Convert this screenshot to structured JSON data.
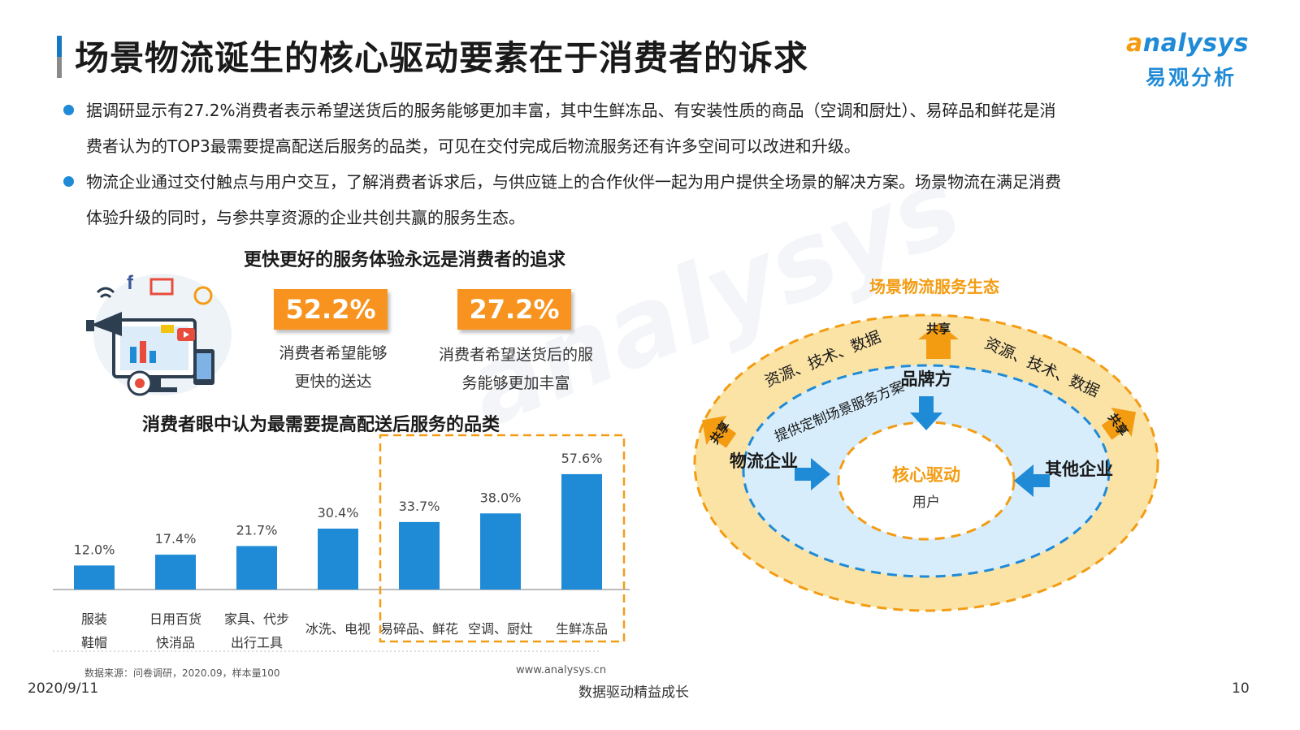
{
  "title": "场景物流诞生的核心驱动要素在于消费者的诉求",
  "logo": {
    "en": "nalysys",
    "en_initial": "a",
    "cn": "易观分析"
  },
  "bullets": [
    {
      "line1": "据调研显示有27.2%消费者表示希望送货后的服务能够更加丰富，其中生鲜冻品、有安装性质的商品（空调和厨灶）、易碎品和鲜花是消",
      "line2": "费者认为的TOP3最需要提高配送后服务的品类，可见在交付完成后物流服务还有许多空间可以改进和升级。"
    },
    {
      "line1": "物流企业通过交付触点与用户交互，了解消费者诉求后，与供应链上的合作伙伴一起为用户提供全场景的解决方案。场景物流在满足消费",
      "line2": "体验升级的同时，与参共享资源的企业共创共赢的服务生态。"
    }
  ],
  "stats": {
    "heading": "更快更好的服务体验永远是消费者的追求",
    "items": [
      {
        "value": "52.2%",
        "caption1": "消费者希望能够",
        "caption2": "更快的送达"
      },
      {
        "value": "27.2%",
        "caption1": "消费者希望送货后的服",
        "caption2": "务能够更加丰富"
      }
    ]
  },
  "chart_data": {
    "type": "bar",
    "title": "消费者眼中认为最需要提高配送后服务的品类",
    "categories": [
      [
        "服装",
        "鞋帽"
      ],
      [
        "日用百货",
        "快消品"
      ],
      [
        "家具、代步",
        "出行工具"
      ],
      [
        "冰洗、电视"
      ],
      [
        "易碎品、鲜花"
      ],
      [
        "空调、厨灶"
      ],
      [
        "生鲜冻品"
      ]
    ],
    "values": [
      12.0,
      17.4,
      21.7,
      30.4,
      33.7,
      38.0,
      57.6
    ],
    "value_labels": [
      "12.0%",
      "17.4%",
      "21.7%",
      "30.4%",
      "33.7%",
      "38.0%",
      "57.6%"
    ],
    "highlighted": [
      4,
      5,
      6
    ],
    "bar_color": "#1f8ad6",
    "highlight_color": "#f39c12",
    "ylim": [
      0,
      60
    ],
    "grid": false
  },
  "diagram": {
    "title": "场景物流服务生态",
    "outer_top_left": "资源、技术、数据",
    "outer_top_right": "资源、技术、数据",
    "share_label": "共享",
    "brand": "品牌方",
    "brand_note": "提供定制场景服务方案",
    "logistics": "物流企业",
    "others": "其他企业",
    "core_title": "核心驱动",
    "core_sub": "用户",
    "colors": {
      "outer": "#fbe3a6",
      "middle": "#d7edfb",
      "arrow_blue": "#1f8ad6",
      "arrow_orange": "#f39c12"
    }
  },
  "footer": {
    "source": "数据来源：问卷调研，2020.09，样本量100",
    "site": "www.analysys.cn",
    "date": "2020/9/11",
    "slogan": "数据驱动精益成长",
    "page": "10"
  }
}
